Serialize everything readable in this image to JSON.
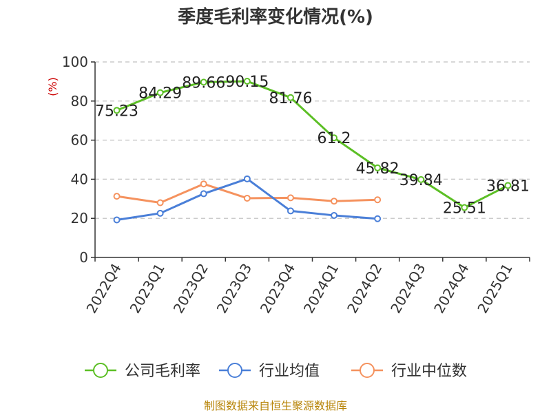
{
  "chart_data": {
    "type": "line",
    "title": "季度毛利率变化情况(%)",
    "ylabel": "(%)",
    "categories": [
      "2022Q4",
      "2023Q1",
      "2023Q2",
      "2023Q3",
      "2023Q4",
      "2024Q1",
      "2024Q2",
      "2024Q3",
      "2024Q4",
      "2025Q1"
    ],
    "ylim": [
      0,
      100
    ],
    "yticks": [
      0,
      20,
      40,
      60,
      80,
      100
    ],
    "grid": "y-dashed",
    "legend_position": "bottom",
    "series": [
      {
        "name": "公司毛利率",
        "color": "#5cbf25",
        "labels": true,
        "values": [
          75.23,
          84.29,
          89.66,
          90.15,
          81.76,
          61.2,
          45.82,
          39.84,
          25.51,
          36.81
        ]
      },
      {
        "name": "行业均值",
        "color": "#4a7fd8",
        "labels": false,
        "values": [
          19.2,
          22.6,
          32.6,
          40.2,
          23.8,
          21.5,
          19.8,
          null,
          null,
          null
        ]
      },
      {
        "name": "行业中位数",
        "color": "#f5925e",
        "labels": false,
        "values": [
          31.3,
          28.0,
          37.6,
          30.3,
          30.5,
          28.8,
          29.5,
          null,
          null,
          null
        ]
      }
    ]
  },
  "footer": {
    "source": "制图数据来自恒生聚源数据库"
  }
}
